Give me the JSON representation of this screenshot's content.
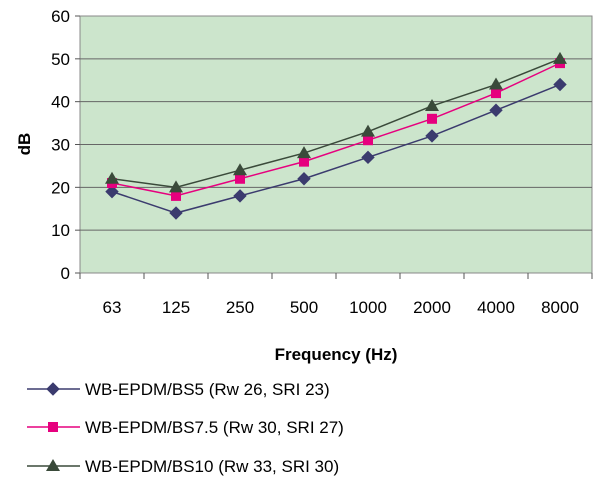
{
  "chart_data": {
    "type": "line",
    "categories": [
      "63",
      "125",
      "250",
      "500",
      "1000",
      "2000",
      "4000",
      "8000"
    ],
    "xlabel": "Frequency (Hz)",
    "ylabel": "dB",
    "ylim": [
      0,
      60
    ],
    "yticks": [
      "0",
      "10",
      "20",
      "30",
      "40",
      "50",
      "60"
    ],
    "plot_background": "#cce5cc",
    "grid": "horizontal",
    "legend_position": "bottom",
    "series": [
      {
        "name": "WB-EPDM/BS5  (Rw  26, SRI 23)",
        "values": [
          19,
          14,
          18,
          22,
          27,
          32,
          38,
          44
        ],
        "color": "#3b3b6e",
        "marker": "diamond"
      },
      {
        "name": "WB-EPDM/BS7.5 (Rw  30, SRI 27)",
        "values": [
          21,
          18,
          22,
          26,
          31,
          36,
          42,
          49
        ],
        "color": "#e6007e",
        "marker": "square"
      },
      {
        "name": "WB-EPDM/BS10 (Rw  33, SRI 30)",
        "values": [
          22,
          20,
          24,
          28,
          33,
          39,
          44,
          50
        ],
        "color": "#3a4a3a",
        "marker": "triangle"
      }
    ]
  }
}
